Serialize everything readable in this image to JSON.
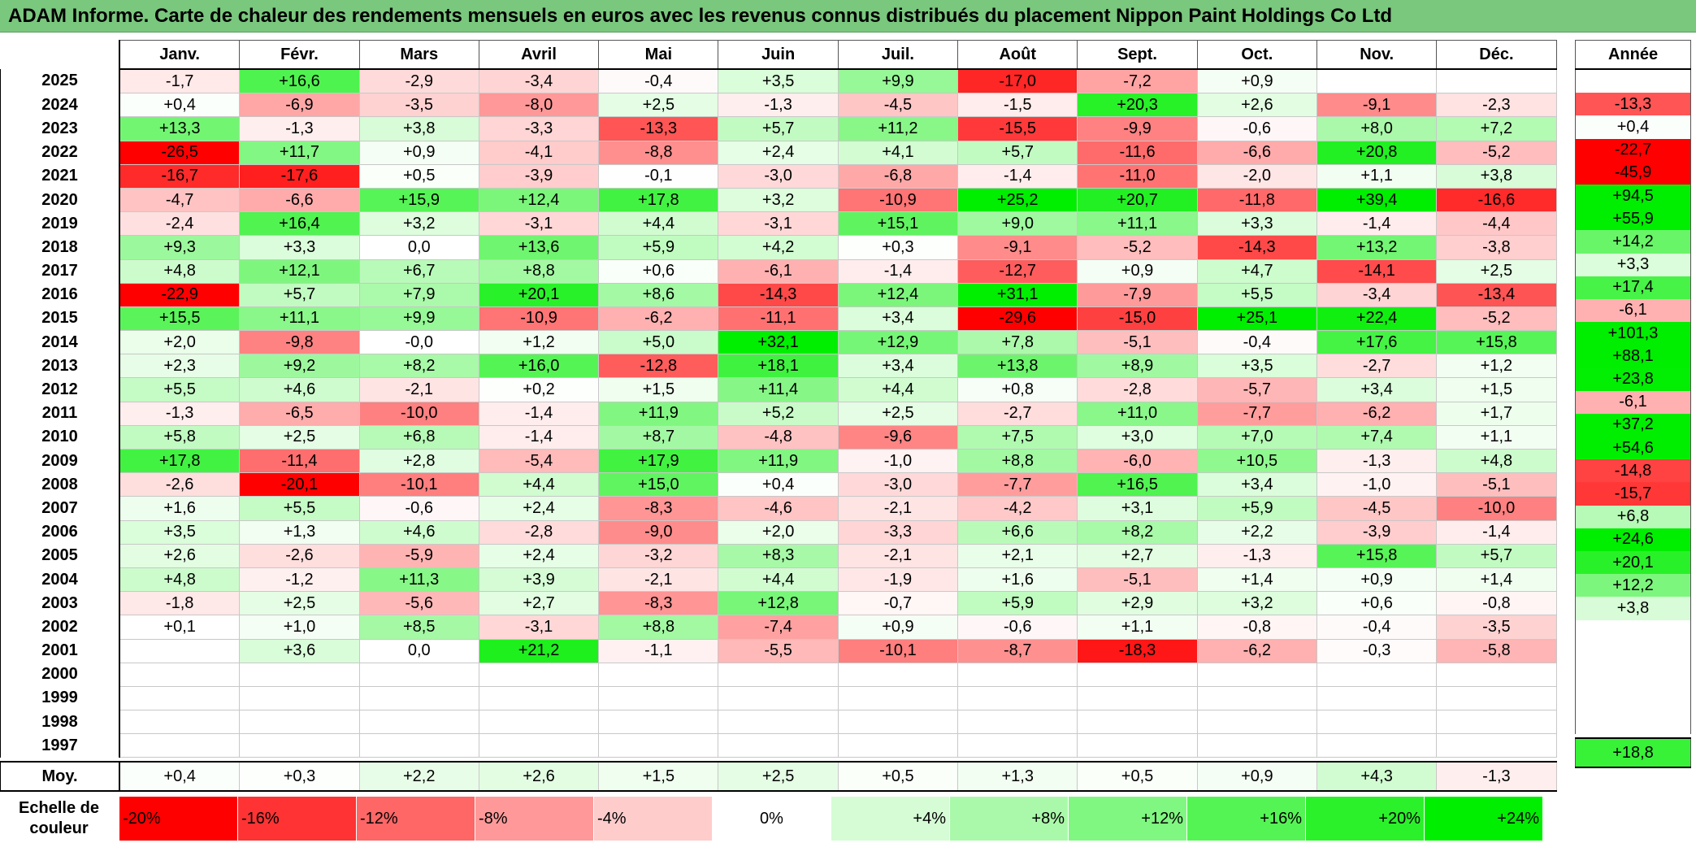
{
  "title": "ADAM Informe. Carte de chaleur des rendements mensuels en euros avec les revenus connus distribués du placement Nippon Paint Holdings Co Ltd",
  "months": [
    "Janv.",
    "Févr.",
    "Mars",
    "Avril",
    "Mai",
    "Juin",
    "Juil.",
    "Août",
    "Sept.",
    "Oct.",
    "Nov.",
    "Déc."
  ],
  "annual_header": "Année",
  "average_label": "Moy.",
  "scale_label_line1": "Echelle de",
  "scale_label_line2": "couleur",
  "colors": {
    "negative_max": "#ff0000",
    "neutral": "#ffffff",
    "positive_max": "#00ee00",
    "title_background": "#7ac77e"
  },
  "chart_data": {
    "type": "heatmap",
    "title": "ADAM Informe. Carte de chaleur des rendements mensuels en euros avec les revenus connus distribués du placement Nippon Paint Holdings Co Ltd",
    "x_categories": [
      "Janv.",
      "Févr.",
      "Mars",
      "Avril",
      "Mai",
      "Juin",
      "Juil.",
      "Août",
      "Sept.",
      "Oct.",
      "Nov.",
      "Déc."
    ],
    "rows": [
      {
        "year": "2025",
        "values": [
          -1.7,
          16.6,
          -2.9,
          -3.4,
          -0.4,
          3.5,
          9.9,
          -17.0,
          -7.2,
          0.9,
          null,
          null
        ],
        "annual": null
      },
      {
        "year": "2024",
        "values": [
          0.4,
          -6.9,
          -3.5,
          -8.0,
          2.5,
          -1.3,
          -4.5,
          -1.5,
          20.3,
          2.6,
          -9.1,
          -2.3
        ],
        "annual": -13.3
      },
      {
        "year": "2023",
        "values": [
          13.3,
          -1.3,
          3.8,
          -3.3,
          -13.3,
          5.7,
          11.2,
          -15.5,
          -9.9,
          -0.6,
          8.0,
          7.2
        ],
        "annual": 0.4
      },
      {
        "year": "2022",
        "values": [
          -26.5,
          11.7,
          0.9,
          -4.1,
          -8.8,
          2.4,
          4.1,
          5.7,
          -11.6,
          -6.6,
          20.8,
          -5.2
        ],
        "annual": -22.7
      },
      {
        "year": "2021",
        "values": [
          -16.7,
          -17.6,
          0.5,
          -3.9,
          -0.1,
          -3.0,
          -6.8,
          -1.4,
          -11.0,
          -2.0,
          1.1,
          3.8
        ],
        "annual": -45.9
      },
      {
        "year": "2020",
        "values": [
          -4.7,
          -6.6,
          15.9,
          12.4,
          17.8,
          3.2,
          -10.9,
          25.2,
          20.7,
          -11.8,
          39.4,
          -16.6
        ],
        "annual": 94.5
      },
      {
        "year": "2019",
        "values": [
          -2.4,
          16.4,
          3.2,
          -3.1,
          4.4,
          -3.1,
          15.1,
          9.0,
          11.1,
          3.3,
          -1.4,
          -4.4
        ],
        "annual": 55.9
      },
      {
        "year": "2018",
        "values": [
          9.3,
          3.3,
          0.0,
          13.6,
          5.9,
          4.2,
          0.3,
          -9.1,
          -5.2,
          -14.3,
          13.2,
          -3.8
        ],
        "annual": 14.2
      },
      {
        "year": "2017",
        "values": [
          4.8,
          12.1,
          6.7,
          8.8,
          0.6,
          -6.1,
          -1.4,
          -12.7,
          0.9,
          4.7,
          -14.1,
          2.5
        ],
        "annual": 3.3
      },
      {
        "year": "2016",
        "values": [
          -22.9,
          5.7,
          7.9,
          20.1,
          8.6,
          -14.3,
          12.4,
          31.1,
          -7.9,
          5.5,
          -3.4,
          -13.4
        ],
        "annual": 17.4
      },
      {
        "year": "2015",
        "values": [
          15.5,
          11.1,
          9.9,
          -10.9,
          -6.2,
          -11.1,
          3.4,
          -29.6,
          -15.0,
          25.1,
          22.4,
          -5.2
        ],
        "annual": -6.1
      },
      {
        "year": "2014",
        "values": [
          2.0,
          -9.8,
          "-0,0",
          1.2,
          5.0,
          32.1,
          12.9,
          7.8,
          -5.1,
          -0.4,
          17.6,
          15.8
        ],
        "annual": 101.3
      },
      {
        "year": "2013",
        "values": [
          2.3,
          9.2,
          8.2,
          16.0,
          -12.8,
          18.1,
          3.4,
          13.8,
          8.9,
          3.5,
          -2.7,
          1.2
        ],
        "annual": 88.1
      },
      {
        "year": "2012",
        "values": [
          5.5,
          4.6,
          -2.1,
          0.2,
          1.5,
          11.4,
          4.4,
          0.8,
          -2.8,
          -5.7,
          3.4,
          1.5
        ],
        "annual": 23.8
      },
      {
        "year": "2011",
        "values": [
          -1.3,
          -6.5,
          -10.0,
          -1.4,
          11.9,
          5.2,
          2.5,
          -2.7,
          11.0,
          -7.7,
          -6.2,
          1.7
        ],
        "annual": -6.1
      },
      {
        "year": "2010",
        "values": [
          5.8,
          2.5,
          6.8,
          -1.4,
          8.7,
          -4.8,
          -9.6,
          7.5,
          3.0,
          7.0,
          7.4,
          1.1
        ],
        "annual": 37.2
      },
      {
        "year": "2009",
        "values": [
          17.8,
          -11.4,
          2.8,
          -5.4,
          17.9,
          11.9,
          -1.0,
          8.8,
          -6.0,
          10.5,
          -1.3,
          4.8
        ],
        "annual": 54.6
      },
      {
        "year": "2008",
        "values": [
          -2.6,
          -20.1,
          -10.1,
          4.4,
          15.0,
          0.4,
          -3.0,
          -7.7,
          16.5,
          3.4,
          -1.0,
          -5.1
        ],
        "annual": -14.8
      },
      {
        "year": "2007",
        "values": [
          1.6,
          5.5,
          -0.6,
          2.4,
          -8.3,
          -4.6,
          -2.1,
          -4.2,
          3.1,
          5.9,
          -4.5,
          -10.0
        ],
        "annual": -15.7
      },
      {
        "year": "2006",
        "values": [
          3.5,
          1.3,
          4.6,
          -2.8,
          -9.0,
          2.0,
          -3.3,
          6.6,
          8.2,
          2.2,
          -3.9,
          -1.4
        ],
        "annual": 6.8
      },
      {
        "year": "2005",
        "values": [
          2.6,
          -2.6,
          -5.9,
          2.4,
          -3.2,
          8.3,
          -2.1,
          2.1,
          2.7,
          -1.3,
          15.8,
          5.7
        ],
        "annual": 24.6
      },
      {
        "year": "2004",
        "values": [
          4.8,
          -1.2,
          11.3,
          3.9,
          -2.1,
          4.4,
          -1.9,
          1.6,
          -5.1,
          1.4,
          0.9,
          1.4
        ],
        "annual": 20.1
      },
      {
        "year": "2003",
        "values": [
          -1.8,
          2.5,
          -5.6,
          2.7,
          -8.3,
          12.8,
          -0.7,
          5.9,
          2.9,
          3.2,
          0.6,
          -0.8
        ],
        "annual": 12.2
      },
      {
        "year": "2002",
        "values": [
          0.1,
          1.0,
          8.5,
          -3.1,
          8.8,
          -7.4,
          0.9,
          -0.6,
          1.1,
          -0.8,
          -0.4,
          -3.5
        ],
        "annual": 3.8
      },
      {
        "year": "2001",
        "values": [
          null,
          3.6,
          0.0,
          21.2,
          -1.1,
          -5.5,
          -10.1,
          -8.7,
          -18.3,
          -6.2,
          -0.3,
          -5.8
        ],
        "annual": null
      },
      {
        "year": "2000",
        "values": [
          null,
          null,
          null,
          null,
          null,
          null,
          null,
          null,
          null,
          null,
          null,
          null
        ],
        "annual": null
      },
      {
        "year": "1999",
        "values": [
          null,
          null,
          null,
          null,
          null,
          null,
          null,
          null,
          null,
          null,
          null,
          null
        ],
        "annual": null
      },
      {
        "year": "1998",
        "values": [
          null,
          null,
          null,
          null,
          null,
          null,
          null,
          null,
          null,
          null,
          null,
          null
        ],
        "annual": null
      },
      {
        "year": "1997",
        "values": [
          null,
          null,
          null,
          null,
          null,
          null,
          null,
          null,
          null,
          null,
          null,
          null
        ],
        "annual": null
      }
    ],
    "averages": [
      0.4,
      0.3,
      2.2,
      2.6,
      1.5,
      2.5,
      0.5,
      1.3,
      0.5,
      0.9,
      4.3,
      -1.3
    ],
    "average_annual": 18.8,
    "scale": [
      "-20%",
      "-16%",
      "-12%",
      "-8%",
      "-4%",
      "0%",
      "+4%",
      "+8%",
      "+12%",
      "+16%",
      "+20%",
      "+24%"
    ],
    "scale_values": [
      -20,
      -16,
      -12,
      -8,
      -4,
      0,
      4,
      8,
      12,
      16,
      20,
      24
    ]
  }
}
